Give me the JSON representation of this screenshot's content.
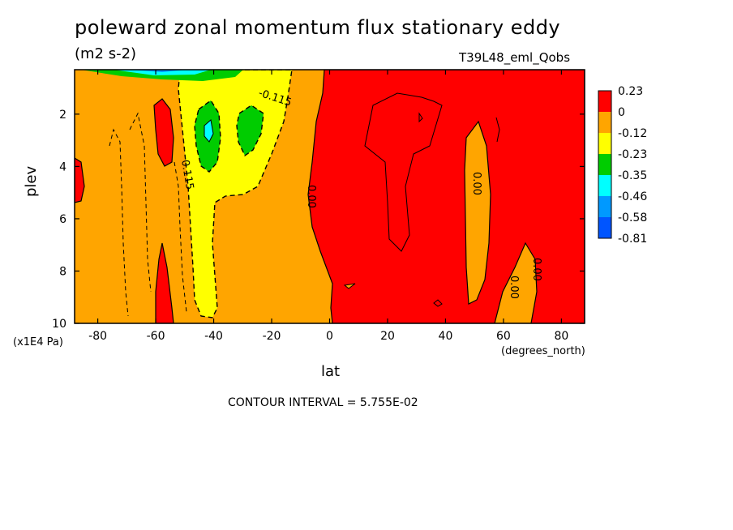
{
  "chart_data": {
    "type": "heatmap",
    "title": "poleward zonal momentum flux stationary eddy",
    "units": "(m2 s-2)",
    "dataset": "T39L48_eml_Qobs",
    "xlabel": "lat",
    "xunit": "(degrees_north)",
    "ylabel": "plev",
    "yunit": "(x1E4 Pa)",
    "xlim": [
      -88,
      88
    ],
    "ylim": [
      10,
      0.3
    ],
    "xticks": [
      "-80",
      "-60",
      "-40",
      "-20",
      "0",
      "20",
      "40",
      "60",
      "80"
    ],
    "xtick_values": [
      -80,
      -60,
      -40,
      -20,
      0,
      20,
      40,
      60,
      80
    ],
    "yticks": [
      "2",
      "4",
      "6",
      "8",
      "10"
    ],
    "ytick_values": [
      2,
      4,
      6,
      8,
      10
    ],
    "contour_interval": "CONTOUR INTERVAL = 5.755E-02",
    "contour_labels": [
      "-0.115",
      "0.115",
      "0.00",
      "0.00",
      "0.00",
      "0.00"
    ],
    "legend": {
      "labels": [
        "0.23",
        "0",
        "-0.12",
        "-0.23",
        "-0.35",
        "-0.46",
        "-0.58",
        "-0.81"
      ],
      "colors": [
        "#ff0000",
        "#ffa500",
        "#ffff00",
        "#00cc00",
        "#00ffff",
        "#0099ff",
        "#0055ff"
      ]
    }
  }
}
